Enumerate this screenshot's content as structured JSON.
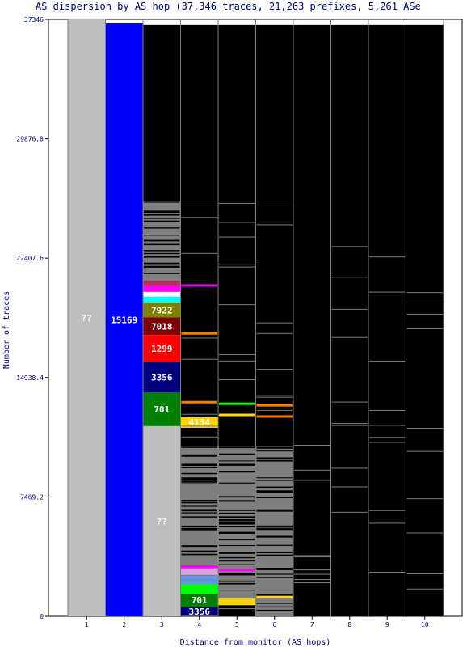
{
  "chart_data": {
    "type": "bar",
    "title": "AS dispersion by AS hop (37,346 traces, 21,263 prefixes, 5,261 ASe",
    "xlabel": "Distance from monitor (AS hops)",
    "ylabel": "Number of traces",
    "ylim": [
      0,
      37346
    ],
    "y_ticks": [
      "0",
      "7469.2",
      "14938.4",
      "22407.6",
      "29876.8",
      "37346"
    ],
    "categories": [
      "1",
      "2",
      "3",
      "4",
      "5",
      "6",
      "7",
      "8",
      "9",
      "10"
    ],
    "segments": [
      {
        "hop": 1,
        "from": 0,
        "to": 37346,
        "color": "#bebebe",
        "label": "??"
      },
      {
        "hop": 2,
        "from": 0,
        "to": 37100,
        "color": "#0000ff",
        "label": "15169"
      },
      {
        "hop": 3,
        "from": 0,
        "to": 11900,
        "color": "#bebebe",
        "label": "??"
      },
      {
        "hop": 3,
        "from": 11900,
        "to": 14000,
        "color": "#008000",
        "label": "701"
      },
      {
        "hop": 3,
        "from": 14000,
        "to": 15900,
        "color": "#00007f",
        "label": "3356"
      },
      {
        "hop": 3,
        "from": 15900,
        "to": 17600,
        "color": "#ff0000",
        "label": "1299"
      },
      {
        "hop": 3,
        "from": 17600,
        "to": 18700,
        "color": "#7f0000",
        "label": "7018"
      },
      {
        "hop": 3,
        "from": 18700,
        "to": 19600,
        "color": "#808000",
        "label": "7922"
      },
      {
        "hop": 3,
        "from": 19600,
        "to": 20000,
        "color": "#00ffff",
        "label": ""
      },
      {
        "hop": 3,
        "from": 20300,
        "to": 20700,
        "color": "#ff00ff",
        "label": ""
      },
      {
        "hop": 3,
        "from": 20700,
        "to": 21000,
        "color": "#b03060",
        "label": ""
      },
      {
        "hop": 3,
        "from": 21000,
        "to": 26000,
        "color": "#7f7f7f",
        "label": ""
      },
      {
        "hop": 3,
        "from": 26000,
        "to": 37000,
        "color": "#000000",
        "label": ""
      },
      {
        "hop": 4,
        "from": 0,
        "to": 600,
        "color": "#00007f",
        "label": "3356"
      },
      {
        "hop": 4,
        "from": 600,
        "to": 1400,
        "color": "#008000",
        "label": "701"
      },
      {
        "hop": 4,
        "from": 1400,
        "to": 2000,
        "color": "#00ff00",
        "label": ""
      },
      {
        "hop": 4,
        "from": 2000,
        "to": 2600,
        "color": "#6495ed",
        "label": ""
      },
      {
        "hop": 4,
        "from": 2600,
        "to": 3000,
        "color": "#dda0dd",
        "label": ""
      },
      {
        "hop": 4,
        "from": 3000,
        "to": 3200,
        "color": "#ff00ff",
        "label": ""
      },
      {
        "hop": 4,
        "from": 3200,
        "to": 10600,
        "color": "#7f7f7f",
        "label": ""
      },
      {
        "hop": 4,
        "from": 10600,
        "to": 11800,
        "color": "#000000",
        "label": ""
      },
      {
        "hop": 4,
        "from": 11800,
        "to": 12500,
        "color": "#ffd700",
        "label": "4134"
      },
      {
        "hop": 4,
        "from": 12500,
        "to": 26000,
        "color": "#000000",
        "label": ""
      },
      {
        "hop": 4,
        "from": 26000,
        "to": 37000,
        "color": "#000000",
        "label": ""
      },
      {
        "hop": 5,
        "from": 0,
        "to": 700,
        "color": "#000000",
        "label": ""
      },
      {
        "hop": 5,
        "from": 700,
        "to": 1100,
        "color": "#ffd700",
        "label": ""
      },
      {
        "hop": 5,
        "from": 1100,
        "to": 10600,
        "color": "#7f7f7f",
        "label": ""
      },
      {
        "hop": 5,
        "from": 10600,
        "to": 26000,
        "color": "#000000",
        "label": ""
      },
      {
        "hop": 5,
        "from": 26000,
        "to": 37000,
        "color": "#000000",
        "label": ""
      },
      {
        "hop": 6,
        "from": 0,
        "to": 10600,
        "color": "#7f7f7f",
        "label": ""
      },
      {
        "hop": 6,
        "from": 10600,
        "to": 26000,
        "color": "#000000",
        "label": ""
      },
      {
        "hop": 6,
        "from": 26000,
        "to": 37000,
        "color": "#000000",
        "label": ""
      },
      {
        "hop": 7,
        "from": 0,
        "to": 37000,
        "color": "#000000",
        "label": ""
      },
      {
        "hop": 8,
        "from": 0,
        "to": 37000,
        "color": "#000000",
        "label": ""
      },
      {
        "hop": 9,
        "from": 0,
        "to": 37000,
        "color": "#000000",
        "label": ""
      },
      {
        "hop": 10,
        "from": 0,
        "to": 37000,
        "color": "#000000",
        "label": ""
      }
    ],
    "highlight_bands": [
      {
        "hop": 4,
        "at": 17700,
        "color": "#ff7f00"
      },
      {
        "hop": 4,
        "at": 13400,
        "color": "#ff7f00"
      },
      {
        "hop": 4,
        "at": 20700,
        "color": "#ff00ff"
      },
      {
        "hop": 5,
        "at": 13300,
        "color": "#00ff00"
      },
      {
        "hop": 5,
        "at": 12600,
        "color": "#ffd700"
      },
      {
        "hop": 5,
        "at": 2900,
        "color": "#ff00ff"
      },
      {
        "hop": 6,
        "at": 13200,
        "color": "#ff7f00"
      },
      {
        "hop": 6,
        "at": 12500,
        "color": "#ff7f00"
      },
      {
        "hop": 6,
        "at": 1200,
        "color": "#ffd700"
      }
    ],
    "background_color": "#ffffff",
    "plot_bg_color": "#ffffff",
    "grid": false
  }
}
